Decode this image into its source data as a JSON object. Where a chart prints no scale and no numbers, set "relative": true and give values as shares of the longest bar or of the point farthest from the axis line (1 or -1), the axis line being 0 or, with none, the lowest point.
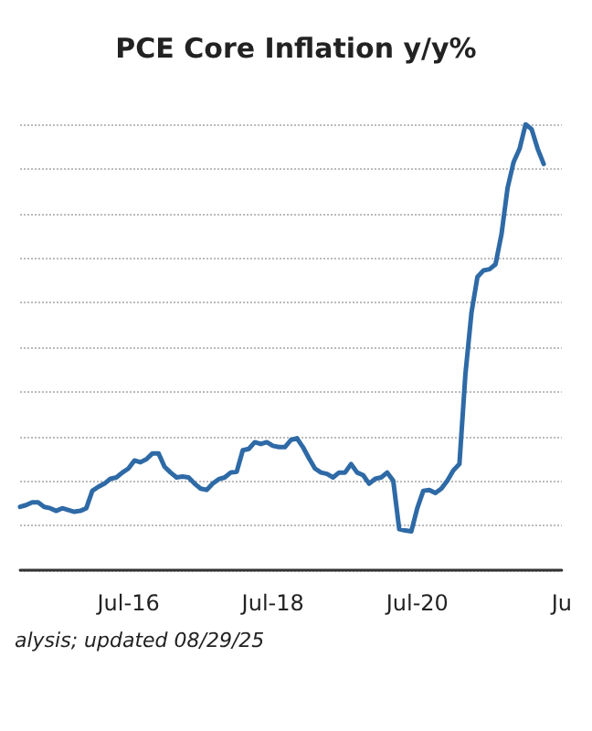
{
  "chart_data": {
    "type": "line",
    "title": "PCE Core Inflation y/y%",
    "relative": true,
    "grid": "y",
    "marker": "none",
    "line_style": "solid",
    "categories": [
      null,
      null,
      null,
      null,
      null,
      null,
      null,
      null,
      null,
      null,
      null,
      null,
      null,
      null,
      null,
      null,
      null,
      null,
      "Jul-16",
      null,
      null,
      null,
      null,
      null,
      null,
      null,
      null,
      null,
      null,
      null,
      null,
      null,
      null,
      null,
      null,
      null,
      null,
      null,
      null,
      null,
      null,
      null,
      "Jul-18",
      null,
      null,
      null,
      null,
      null,
      null,
      null,
      null,
      null,
      null,
      null,
      null,
      null,
      null,
      null,
      null,
      null,
      null,
      null,
      null,
      null,
      null,
      null,
      "Jul-20",
      null,
      null,
      null,
      null,
      null,
      null,
      null,
      null,
      null,
      null,
      null,
      null,
      null,
      null,
      null,
      null,
      null,
      null,
      null,
      null,
      null,
      null,
      null,
      "Ju"
    ],
    "series": [
      {
        "color": "#2e6aa6",
        "values": [
          0.142,
          0.146,
          0.152,
          0.152,
          0.142,
          0.139,
          0.133,
          0.139,
          0.135,
          0.131,
          0.133,
          0.139,
          0.178,
          0.187,
          0.194,
          0.205,
          0.208,
          0.219,
          0.228,
          0.246,
          0.242,
          0.249,
          0.262,
          0.262,
          0.232,
          0.219,
          0.208,
          0.21,
          0.208,
          0.194,
          0.183,
          0.18,
          0.194,
          0.204,
          0.208,
          0.219,
          0.221,
          0.269,
          0.272,
          0.287,
          0.283,
          0.287,
          0.279,
          0.276,
          0.276,
          0.292,
          0.296,
          0.276,
          0.251,
          0.228,
          0.219,
          0.216,
          0.208,
          0.219,
          0.219,
          0.238,
          0.219,
          0.213,
          0.194,
          0.205,
          0.208,
          0.219,
          0.201,
          0.092,
          0.089,
          0.087,
          0.139,
          0.178,
          0.18,
          0.173,
          0.183,
          0.201,
          0.224,
          0.238,
          0.44,
          0.577,
          0.658,
          0.672,
          0.675,
          0.686,
          0.754,
          0.857,
          0.915,
          0.945,
          1,
          0.989,
          0.945,
          0.911,
          null,
          null,
          null
        ]
      }
    ],
    "annotations": [
      "alysis; updated 08/29/25"
    ]
  }
}
